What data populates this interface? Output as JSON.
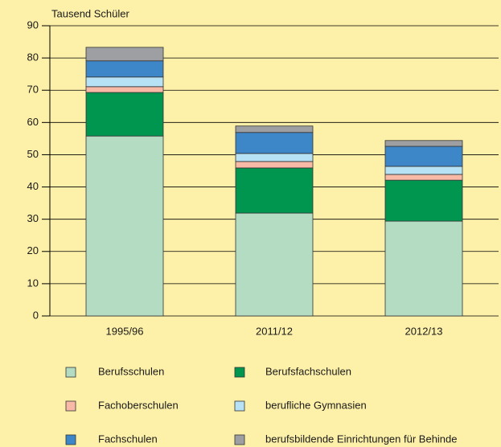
{
  "chart_data": {
    "type": "stacked_bar",
    "y_label": "Tausend Schüler",
    "categories": [
      "1995/96",
      "2011/12",
      "2012/13"
    ],
    "series": [
      {
        "name": "Berufsschulen",
        "color": "#b3dcc3",
        "values": [
          55.8,
          31.9,
          29.4
        ]
      },
      {
        "name": "Berufsfachschulen",
        "color": "#00964f",
        "values": [
          13.5,
          14.0,
          12.7
        ]
      },
      {
        "name": "Fachoberschulen",
        "color": "#f8b9a6",
        "values": [
          1.8,
          2.0,
          1.8
        ]
      },
      {
        "name": "berufliche Gymnasien",
        "color": "#b7e1f5",
        "values": [
          3.0,
          2.5,
          2.5
        ]
      },
      {
        "name": "Fachschulen",
        "color": "#3d87c8",
        "values": [
          5.0,
          6.5,
          6.2
        ]
      },
      {
        "name": "berufsbildende Einrichtungen für Behinde",
        "color": "#9d9fa2",
        "values": [
          4.2,
          2.0,
          1.8
        ]
      }
    ],
    "ylim": [
      0,
      90
    ],
    "yticks": [
      0,
      10,
      20,
      30,
      40,
      50,
      60,
      70,
      80,
      90
    ],
    "grid": true
  }
}
